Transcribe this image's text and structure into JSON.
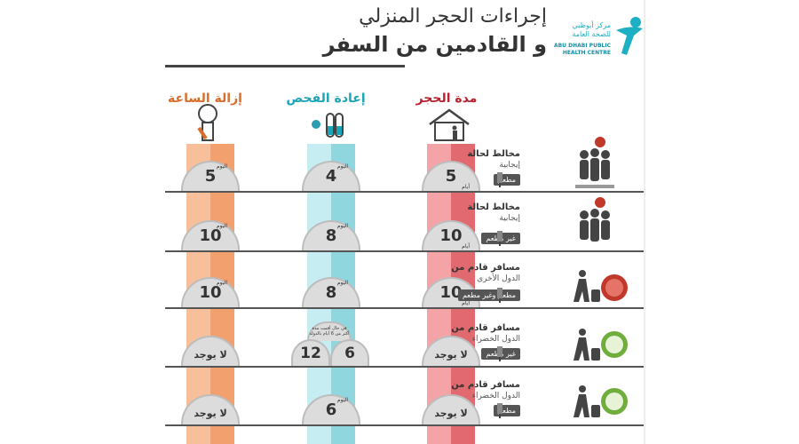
{
  "header": {
    "title_line1": "إجراءات الحجر المنزلي",
    "title_line2": "و القادمين من السفر"
  },
  "logo": {
    "arabic_name": "مركز أبوظبي للصحة العامة",
    "english_name": "ABU DHABI PUBLIC HEALTH CENTRE"
  },
  "columns": [
    {
      "label": "مدة الحجر",
      "color": "#b8232f"
    },
    {
      "label": "إعادة الفحص",
      "color": "#1aa6b7"
    },
    {
      "label": "إزالة الساعة",
      "color": "#d96d2b"
    }
  ],
  "units": {
    "day": "اليوم",
    "days": "أيام"
  },
  "rows": [
    {
      "title": "مخالط لحالة",
      "subtitle": "إيجابية",
      "tag": "مطعم",
      "quarantine": "5",
      "retest": "4",
      "removal": "5"
    },
    {
      "title": "مخالط لحالة",
      "subtitle": "إيجابية",
      "tag": "غير مطعم",
      "quarantine": "10",
      "retest": "8",
      "removal": "10"
    },
    {
      "title": "مسافر قادم من",
      "subtitle": "الدول الأخرى",
      "tag": "مطعم وغير مطعم",
      "quarantine": "10",
      "retest": "8",
      "removal": "10"
    },
    {
      "title": "مسافر قادم من",
      "subtitle": "الدول الخضراء",
      "tag": "غير مطعم",
      "quarantine": "لا يوجد",
      "retest_a": "6",
      "retest_b": "12",
      "retest_note": "في حال أقمت مدة أكثر من 6 أيام بالدولة",
      "removal": "لا يوجد"
    },
    {
      "title": "مسافر قادم من",
      "subtitle": "الدول الخضراء",
      "tag": "مطعم",
      "quarantine": "لا يوجد",
      "retest": "6",
      "removal": "لا يوجد"
    }
  ],
  "colors": {
    "red": "#e06a6f",
    "teal": "#8fd6df",
    "orange": "#f2a06e",
    "dome": "#dcdcdc",
    "virus_red": "#c0392b",
    "globe_green": "#6fae3c"
  }
}
